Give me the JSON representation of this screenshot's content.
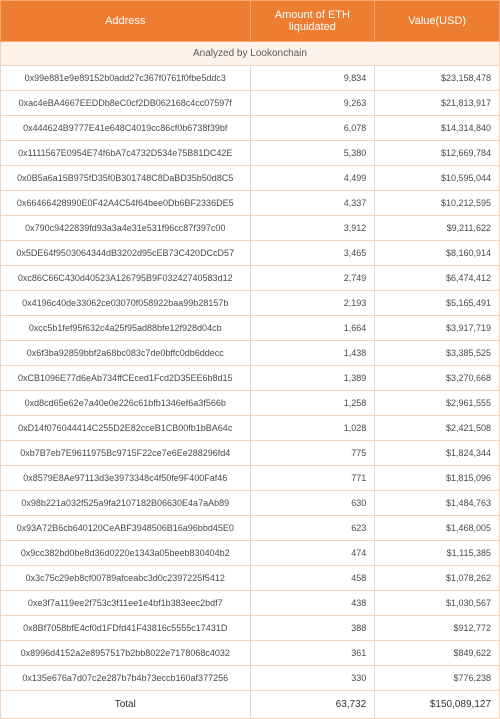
{
  "header": {
    "col_address": "Address",
    "col_amount": "Amount of ETH liquidated",
    "col_value": "Value(USD)"
  },
  "subtitle": "Analyzed by Lookonchain",
  "rows": [
    {
      "address": "0x99e881e9e89152b0add27c367f0761f0fbe5ddc3",
      "amount": "9,834",
      "value": "$23,158,478"
    },
    {
      "address": "0xac4eBA4667EEDDb8eC0cf2DB062168c4cc07597f",
      "amount": "9,263",
      "value": "$21,813,917"
    },
    {
      "address": "0x444624B9777E41e648C4019cc86cf0b6738f39bf",
      "amount": "6,078",
      "value": "$14,314,840"
    },
    {
      "address": "0x1111567E0954E74f6bA7c4732D534e75B81DC42E",
      "amount": "5,380",
      "value": "$12,669,784"
    },
    {
      "address": "0x0B5a6a15B975fD35f0B301748C8DaBD35b50d8C5",
      "amount": "4,499",
      "value": "$10,595,044"
    },
    {
      "address": "0x66466428990E0F42A4C54f64bee0Db6BF2336DE5",
      "amount": "4,337",
      "value": "$10,212,595"
    },
    {
      "address": "0x790c9422839fd93a3a4e31e531f96cc87f397c00",
      "amount": "3,912",
      "value": "$9,211,622"
    },
    {
      "address": "0x5DE64f9503064344dB3202d95cEB73C420DCcD57",
      "amount": "3,465",
      "value": "$8,160,914"
    },
    {
      "address": "0xc86C66C430d40523A126795B9F03242740583d12",
      "amount": "2,749",
      "value": "$6,474,412"
    },
    {
      "address": "0x4196c40de33062ce03070f058922baa99b28157b",
      "amount": "2,193",
      "value": "$5,165,491"
    },
    {
      "address": "0xcc5b1fef95f632c4a25f95ad88bfe12f928d04cb",
      "amount": "1,664",
      "value": "$3,917,719"
    },
    {
      "address": "0x6f3ba92859bbf2a68bc083c7de0bffc0db6ddecc",
      "amount": "1,438",
      "value": "$3,385,525"
    },
    {
      "address": "0xCB1096E77d6eAb734ffCEced1Fcd2D35EE6b8d15",
      "amount": "1,389",
      "value": "$3,270,668"
    },
    {
      "address": "0xd8cd65e62e7a40e0e226c61bfb1346ef6a3f566b",
      "amount": "1,258",
      "value": "$2,961,555"
    },
    {
      "address": "0xD14f076044414C255D2E82cceB1CB00fb1bBA64c",
      "amount": "1,028",
      "value": "$2,421,508"
    },
    {
      "address": "0xb7B7eb7E9611975Bc9715F22ce7e6Ee288296fd4",
      "amount": "775",
      "value": "$1,824,344"
    },
    {
      "address": "0x8579E8Ae97113d3e3973348c4f50fe9F400Faf46",
      "amount": "771",
      "value": "$1,815,096"
    },
    {
      "address": "0x98b221a032f525a9fa2107182B06630E4a7aAb89",
      "amount": "630",
      "value": "$1,484,763"
    },
    {
      "address": "0x93A72B6cb640120CeABF3948506B16a96bbd45E0",
      "amount": "623",
      "value": "$1,468,005"
    },
    {
      "address": "0x9cc382bd0be8d36d0220e1343a05beeb830404b2",
      "amount": "474",
      "value": "$1,115,385"
    },
    {
      "address": "0x3c75c29eb8cf00789afceabc3d0c2397225f5412",
      "amount": "458",
      "value": "$1,078,262"
    },
    {
      "address": "0xe3f7a119ee2f753c3f11ee1e4bf1b383eec2bdf7",
      "amount": "438",
      "value": "$1,030,567"
    },
    {
      "address": "0x8Bf7058bfE4cf0d1FDfd41F43816c5555c17431D",
      "amount": "388",
      "value": "$912,772"
    },
    {
      "address": "0x8996d4152a2e8957517b2bb8022e7178068c4032",
      "amount": "361",
      "value": "$849,622"
    },
    {
      "address": "0x135e676a7d07c2e287b7b4b73eccb160af377256",
      "amount": "330",
      "value": "$776,238"
    }
  ],
  "total": {
    "label": "Total",
    "amount": "63,732",
    "value": "$150,089,127"
  }
}
